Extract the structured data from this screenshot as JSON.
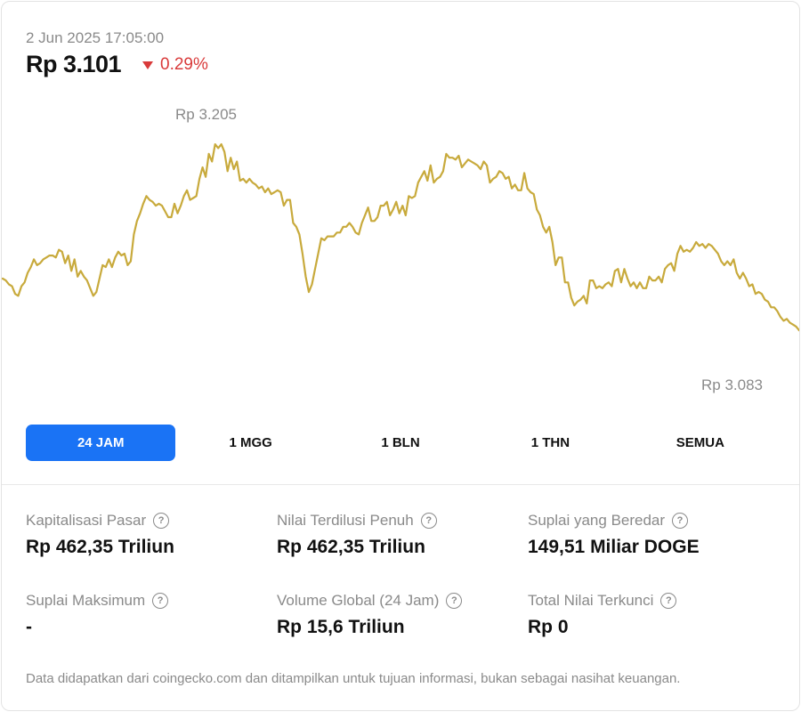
{
  "header": {
    "timestamp": "2 Jun 2025 17:05:00",
    "price": "Rp 3.101",
    "change": "0.29%"
  },
  "colors": {
    "line": "#c8aa3c",
    "accent": "#1a73f5",
    "negative": "#d93a3a"
  },
  "chart_data": {
    "type": "line",
    "y_unit": "Rp",
    "high_label": "Rp 3.205",
    "low_label": "Rp 3.083",
    "ylim": [
      3083,
      3205
    ],
    "values": [
      3128,
      3127,
      3125,
      3124,
      3120,
      3119,
      3124,
      3126,
      3131,
      3134,
      3138,
      3135,
      3136,
      3138,
      3139,
      3140,
      3140,
      3139,
      3143,
      3142,
      3136,
      3140,
      3132,
      3138,
      3129,
      3132,
      3129,
      3127,
      3123,
      3119,
      3121,
      3128,
      3135,
      3134,
      3138,
      3134,
      3139,
      3142,
      3140,
      3141,
      3135,
      3137,
      3151,
      3158,
      3162,
      3167,
      3171,
      3169,
      3168,
      3166,
      3167,
      3166,
      3163,
      3160,
      3160,
      3167,
      3162,
      3166,
      3171,
      3174,
      3169,
      3170,
      3171,
      3180,
      3186,
      3181,
      3193,
      3189,
      3198,
      3196,
      3198,
      3194,
      3184,
      3191,
      3185,
      3189,
      3179,
      3180,
      3178,
      3180,
      3178,
      3177,
      3175,
      3176,
      3173,
      3175,
      3172,
      3173,
      3174,
      3173,
      3166,
      3169,
      3169,
      3157,
      3155,
      3151,
      3141,
      3129,
      3121,
      3125,
      3133,
      3141,
      3149,
      3148,
      3150,
      3150,
      3150,
      3152,
      3152,
      3155,
      3155,
      3157,
      3155,
      3152,
      3151,
      3157,
      3161,
      3165,
      3158,
      3158,
      3160,
      3166,
      3166,
      3168,
      3161,
      3164,
      3168,
      3162,
      3166,
      3161,
      3171,
      3170,
      3171,
      3178,
      3181,
      3184,
      3179,
      3187,
      3178,
      3180,
      3181,
      3184,
      3193,
      3191,
      3191,
      3190,
      3192,
      3186,
      3188,
      3190,
      3189,
      3188,
      3187,
      3185,
      3189,
      3187,
      3178,
      3180,
      3181,
      3184,
      3183,
      3180,
      3181,
      3175,
      3177,
      3174,
      3174,
      3183,
      3175,
      3173,
      3172,
      3164,
      3161,
      3155,
      3152,
      3155,
      3147,
      3135,
      3139,
      3139,
      3126,
      3126,
      3118,
      3114,
      3116,
      3117,
      3119,
      3115,
      3127,
      3127,
      3123,
      3124,
      3123,
      3125,
      3126,
      3124,
      3132,
      3133,
      3126,
      3133,
      3128,
      3124,
      3126,
      3123,
      3126,
      3123,
      3123,
      3129,
      3127,
      3127,
      3129,
      3126,
      3133,
      3135,
      3136,
      3132,
      3141,
      3145,
      3142,
      3143,
      3142,
      3144,
      3147,
      3145,
      3146,
      3144,
      3146,
      3145,
      3143,
      3141,
      3137,
      3135,
      3137,
      3135,
      3138,
      3131,
      3128,
      3131,
      3128,
      3124,
      3125,
      3120,
      3121,
      3120,
      3117,
      3116,
      3113,
      3113,
      3111,
      3108,
      3106,
      3107,
      3105,
      3104,
      3103,
      3101
    ]
  },
  "tabs": [
    {
      "label": "24 JAM",
      "active": true
    },
    {
      "label": "1 MGG",
      "active": false
    },
    {
      "label": "1 BLN",
      "active": false
    },
    {
      "label": "1 THN",
      "active": false
    },
    {
      "label": "SEMUA",
      "active": false
    }
  ],
  "stats": [
    {
      "label": "Kapitalisasi Pasar",
      "value": "Rp 462,35 Triliun"
    },
    {
      "label": "Nilai Terdilusi Penuh",
      "value": "Rp 462,35 Triliun"
    },
    {
      "label": "Suplai yang Beredar",
      "value": "149,51 Miliar DOGE"
    },
    {
      "label": "Suplai Maksimum",
      "value": "-"
    },
    {
      "label": "Volume Global (24 Jam)",
      "value": "Rp 15,6 Triliun"
    },
    {
      "label": "Total Nilai Terkunci",
      "value": "Rp 0"
    }
  ],
  "help_icon": "question-circle-icon",
  "footer": "Data didapatkan dari coingecko.com dan ditampilkan untuk tujuan informasi, bukan sebagai nasihat keuangan."
}
